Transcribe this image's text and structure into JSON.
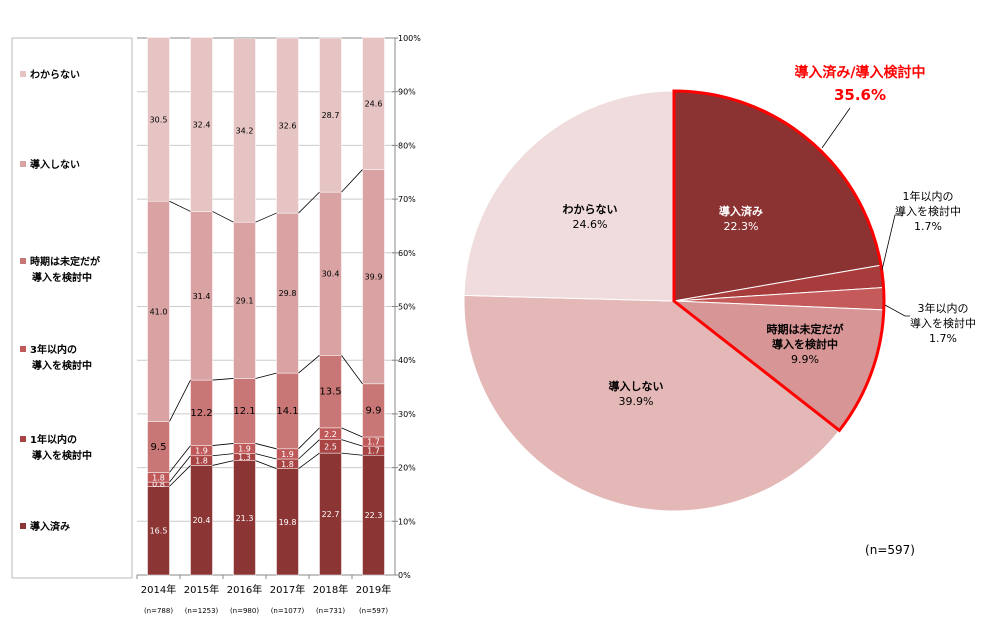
{
  "chart_data": [
    {
      "type": "bar",
      "stacked": true,
      "categories": [
        "2014年",
        "2015年",
        "2016年",
        "2017年",
        "2018年",
        "2019年"
      ],
      "sample_sizes": [
        "(n=788)",
        "(n=1253)",
        "(n=980)",
        "(n=1077)",
        "(n=731)",
        "(n=597)"
      ],
      "ylim": [
        0,
        100
      ],
      "yticks": [
        "0%",
        "10%",
        "20%",
        "30%",
        "40%",
        "50%",
        "60%",
        "70%",
        "80%",
        "90%",
        "100%"
      ],
      "grid": true,
      "legend_position": "left",
      "series": [
        {
          "name": "導入済み",
          "legend_lines": [
            "導入済み"
          ],
          "color": "#8b3535",
          "label_color": "#ffffff",
          "values": [
            16.5,
            20.4,
            21.3,
            19.8,
            22.7,
            22.3
          ]
        },
        {
          "name": "1年以内の導入を検討中",
          "legend_lines": [
            "1年以内の",
            "導入を検討中"
          ],
          "color": "#a84444",
          "label_color": "#ffffff",
          "values": [
            0.8,
            1.8,
            1.3,
            1.8,
            2.5,
            1.7
          ]
        },
        {
          "name": "3年以内の導入を検討中",
          "legend_lines": [
            "3年以内の",
            "導入を検討中"
          ],
          "color": "#c05a5a",
          "label_color": "#ffffff",
          "values": [
            1.8,
            1.9,
            1.9,
            1.9,
            2.2,
            1.7
          ]
        },
        {
          "name": "時期は未定だが導入を検討中",
          "legend_lines": [
            "時期は未定だが",
            "導入を検討中"
          ],
          "color": "#c97676",
          "label_color": "#000000",
          "values": [
            9.5,
            12.2,
            12.1,
            14.1,
            13.5,
            9.9
          ]
        },
        {
          "name": "導入しない",
          "legend_lines": [
            "導入しない"
          ],
          "color": "#d9a3a3",
          "label_color": "#000000",
          "values": [
            41.0,
            31.4,
            29.1,
            29.8,
            30.4,
            39.9
          ]
        },
        {
          "name": "わからない",
          "legend_lines": [
            "わからない"
          ],
          "color": "#e6c4c4",
          "label_color": "#000000",
          "values": [
            30.5,
            32.4,
            34.2,
            32.6,
            28.7,
            24.6
          ]
        }
      ]
    },
    {
      "type": "pie",
      "slices": [
        {
          "lines": [
            "導入済み"
          ],
          "value": 22.3,
          "pct": "22.3%",
          "color": "#8b3232",
          "text_color": "#ffffff"
        },
        {
          "lines": [
            "1年以内の",
            "導入を検討中"
          ],
          "value": 1.7,
          "pct": "1.7%",
          "color": "#a83c3c",
          "text_color": "#000000"
        },
        {
          "lines": [
            "3年以内の",
            "導入を検討中"
          ],
          "value": 1.7,
          "pct": "1.7%",
          "color": "#c45a5a",
          "text_color": "#000000"
        },
        {
          "lines": [
            "時期は未定だが",
            "導入を検討中"
          ],
          "value": 9.9,
          "pct": "9.9%",
          "color": "#d89595",
          "text_color": "#000000"
        },
        {
          "lines": [
            "導入しない"
          ],
          "value": 39.9,
          "pct": "39.9%",
          "color": "#e5b8b8",
          "text_color": "#000000"
        },
        {
          "lines": [
            "わからない"
          ],
          "value": 24.6,
          "pct": "24.6%",
          "color": "#f0dcdc",
          "text_color": "#000000"
        }
      ],
      "highlight": {
        "label": "導入済み/導入検討中",
        "value": "35.6%",
        "color": "#ff0000"
      },
      "sample_size": "(n=597)"
    }
  ]
}
